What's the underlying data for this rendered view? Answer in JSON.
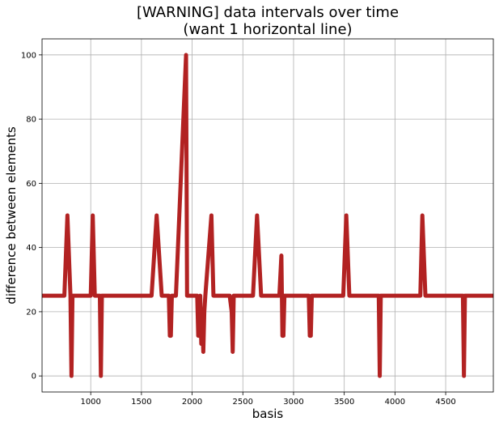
{
  "chart_data": {
    "type": "line",
    "title": [
      "[WARNING] data intervals over time",
      "(want 1 horizontal line)"
    ],
    "xlabel": "basis",
    "ylabel": "difference between elements",
    "xlim": [
      520,
      4970
    ],
    "ylim": [
      -5,
      105
    ],
    "xticks": [
      1000,
      1500,
      2000,
      2500,
      3000,
      3500,
      4000,
      4500
    ],
    "yticks": [
      0,
      20,
      40,
      60,
      80,
      100
    ],
    "grid": true,
    "line_color": "#b22222",
    "series": [
      {
        "x": [
          520,
          740,
          770,
          800,
          810,
          820,
          830,
          840,
          1000,
          1020,
          1040,
          1090,
          1100,
          1110,
          1600,
          1650,
          1700,
          1770,
          1780,
          1790,
          1800,
          1810,
          1820,
          1840,
          1940,
          1950,
          1970,
          2050,
          2060,
          2070,
          2080,
          2090,
          2100,
          2110,
          2120,
          2130,
          2190,
          2210,
          2370,
          2390,
          2400,
          2410,
          2420,
          2600,
          2640,
          2680,
          2860,
          2880,
          2890,
          2900,
          2910,
          2920,
          3150,
          3160,
          3170,
          3180,
          3190,
          3490,
          3520,
          3550,
          3840,
          3850,
          3860,
          4250,
          4270,
          4300,
          4670,
          4680,
          4690,
          4970
        ],
        "y": [
          25,
          25,
          50,
          25,
          0,
          25,
          25,
          25,
          25,
          50,
          25,
          25,
          0,
          25,
          25,
          50,
          25,
          25,
          12.5,
          12.5,
          25,
          25,
          25,
          25,
          100,
          25,
          25,
          25,
          12.5,
          12.5,
          25,
          10,
          17,
          7.5,
          20,
          25,
          50,
          25,
          25,
          20,
          7.5,
          25,
          25,
          25,
          50,
          25,
          25,
          37.5,
          12.5,
          12.5,
          25,
          25,
          25,
          12.5,
          12.5,
          25,
          25,
          25,
          50,
          25,
          25,
          0,
          25,
          25,
          50,
          25,
          25,
          0,
          25,
          25
        ]
      }
    ]
  }
}
